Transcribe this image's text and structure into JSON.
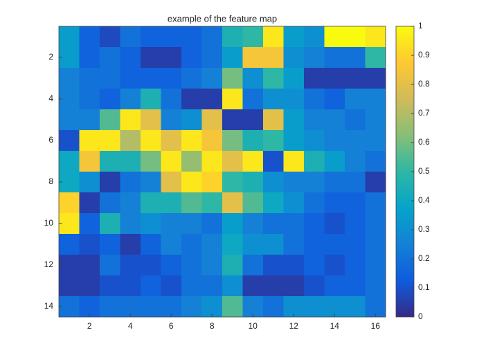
{
  "chart_data": {
    "type": "heatmap",
    "title": "example of the feature map",
    "z": [
      [
        0.35,
        0.15,
        0.08,
        0.2,
        0.15,
        0.15,
        0.15,
        0.2,
        0.45,
        0.5,
        0.95,
        0.35,
        0.3,
        1,
        1,
        0.95
      ],
      [
        0.35,
        0.15,
        0.2,
        0.15,
        0.05,
        0.05,
        0.15,
        0.2,
        0.35,
        0.85,
        0.85,
        0.3,
        0.25,
        0.2,
        0.2,
        0.5
      ],
      [
        0.25,
        0.2,
        0.2,
        0.15,
        0.15,
        0.15,
        0.2,
        0.25,
        0.6,
        0.3,
        0.5,
        0.35,
        0.05,
        0.05,
        0.05,
        0.05
      ],
      [
        0.25,
        0.2,
        0.15,
        0.25,
        0.45,
        0.2,
        0.05,
        0.05,
        0.95,
        0.2,
        0.3,
        0.3,
        0.2,
        0.15,
        0.25,
        0.25
      ],
      [
        0.25,
        0.25,
        0.55,
        0.95,
        0.8,
        0.25,
        0.3,
        0.8,
        0.05,
        0.05,
        0.8,
        0.35,
        0.25,
        0.25,
        0.2,
        0.25
      ],
      [
        0.1,
        0.95,
        0.95,
        0.7,
        0.95,
        0.8,
        0.95,
        0.85,
        0.6,
        0.45,
        0.5,
        0.35,
        0.3,
        0.25,
        0.25,
        0.25
      ],
      [
        0.4,
        0.85,
        0.45,
        0.45,
        0.6,
        0.95,
        0.65,
        0.95,
        0.8,
        0.95,
        0.1,
        0.95,
        0.45,
        0.35,
        0.25,
        0.2
      ],
      [
        0.4,
        0.3,
        0.05,
        0.2,
        0.25,
        0.8,
        0.95,
        0.9,
        0.5,
        0.45,
        0.3,
        0.25,
        0.25,
        0.2,
        0.2,
        0.05
      ],
      [
        0.9,
        0.05,
        0.2,
        0.25,
        0.45,
        0.45,
        0.55,
        0.5,
        0.8,
        0.55,
        0.4,
        0.3,
        0.2,
        0.15,
        0.15,
        0.2
      ],
      [
        0.95,
        0.15,
        0.45,
        0.25,
        0.3,
        0.25,
        0.25,
        0.2,
        0.35,
        0.25,
        0.2,
        0.2,
        0.15,
        0.1,
        0.15,
        0.2
      ],
      [
        0.15,
        0.1,
        0.15,
        0.05,
        0.15,
        0.25,
        0.2,
        0.25,
        0.4,
        0.3,
        0.3,
        0.2,
        0.15,
        0.15,
        0.15,
        0.2
      ],
      [
        0.05,
        0.05,
        0.2,
        0.1,
        0.1,
        0.15,
        0.2,
        0.25,
        0.45,
        0.2,
        0.1,
        0.1,
        0.15,
        0.1,
        0.15,
        0.2
      ],
      [
        0.05,
        0.05,
        0.1,
        0.1,
        0.15,
        0.1,
        0.2,
        0.2,
        0.3,
        0.05,
        0.05,
        0.05,
        0.1,
        0.15,
        0.15,
        0.2
      ],
      [
        0.2,
        0.15,
        0.2,
        0.2,
        0.2,
        0.2,
        0.25,
        0.3,
        0.55,
        0.25,
        0.2,
        0.3,
        0.3,
        0.3,
        0.3,
        0.2
      ]
    ],
    "xlim": [
      0.5,
      16.5
    ],
    "ylim": [
      0.5,
      14.5
    ],
    "y_reversed": true,
    "xticks": [
      2,
      4,
      6,
      8,
      10,
      12,
      14,
      16
    ],
    "yticks": [
      2,
      4,
      6,
      8,
      10,
      12,
      14
    ],
    "clim": [
      0,
      1
    ],
    "colorbar_ticks": [
      0,
      0.1,
      0.2,
      0.3,
      0.4,
      0.5,
      0.6,
      0.7,
      0.8,
      0.9,
      1
    ],
    "colormap": [
      "#352a87",
      "#0f5cdd",
      "#1481d6",
      "#06a4ca",
      "#2eb7a4",
      "#87bf77",
      "#d1bb59",
      "#fec832",
      "#f9fb0e"
    ]
  }
}
